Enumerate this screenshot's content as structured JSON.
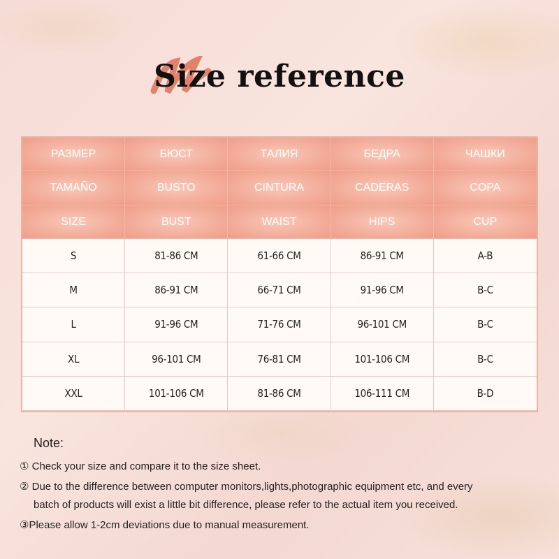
{
  "title": "Size reference",
  "colors": {
    "header": "#f2a996",
    "brush": "#e0785e",
    "border": "#eab3a6"
  },
  "table": {
    "header_rows": [
      [
        "РАЗМЕР",
        "БЮСТ",
        "ТАЛИЯ",
        "БЕДРА",
        "ЧАШКИ"
      ],
      [
        "TAMAÑO",
        "BUSTO",
        "CINTURA",
        "CADERAS",
        "COPA"
      ],
      [
        "SIZE",
        "BUST",
        "WAIST",
        "HIPS",
        "CUP"
      ]
    ],
    "rows": [
      [
        "S",
        "81-86 CM",
        "61-66 CM",
        "86-91 CM",
        "A-B"
      ],
      [
        "M",
        "86-91 CM",
        "66-71 CM",
        "91-96 CM",
        "B-C"
      ],
      [
        "L",
        "91-96 CM",
        "71-76 CM",
        "96-101 CM",
        "B-C"
      ],
      [
        "XL",
        "96-101 CM",
        "76-81 CM",
        "101-106 CM",
        "B-C"
      ],
      [
        "XXL",
        "101-106 CM",
        "81-86 CM",
        "106-111 CM",
        "B-D"
      ]
    ]
  },
  "notes": {
    "title": "Note:",
    "items": [
      "① Check your size and compare it to the size sheet.",
      "② Due to the difference between computer monitors,lights,photographic equipment etc, and every",
      "batch of products will exist a little bit difference, please refer to the actual item you received.",
      "③Please allow 1-2cm deviations due to manual measurement."
    ]
  }
}
